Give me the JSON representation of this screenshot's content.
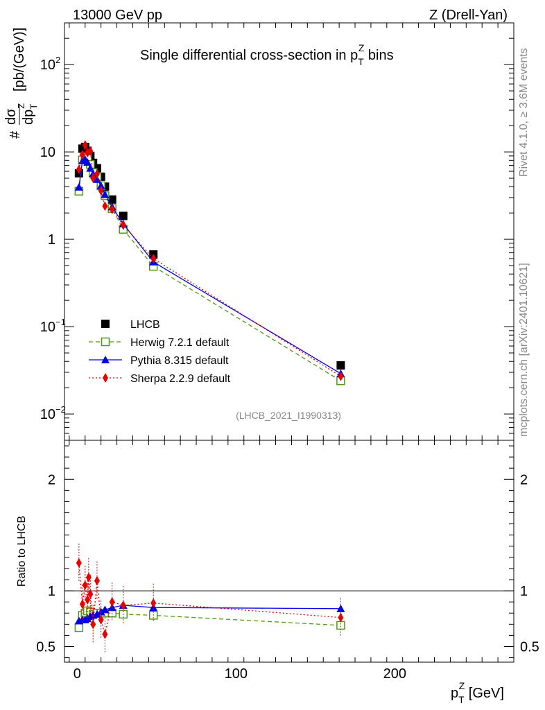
{
  "header": {
    "left": "13000 GeV pp",
    "right": "Z (Drell-Yan)"
  },
  "side_labels": {
    "rivet": "Rivet 4.1.0, ≥ 3.6M events",
    "mcplots": "mcplots.cern.ch [arXiv:2401.10621]"
  },
  "chart_data": {
    "type": "scatter",
    "title": "Single differential cross-section in p_T^Z bins",
    "xlabel": "p_T^Z [GeV]",
    "ylabel_top": "dσ/dp_T^Z [pb/(GeV)]",
    "ylabel_top_prefix": "#",
    "ylabel_bottom": "Ratio to LHCB",
    "analysis_tag": "(LHCB_2021_I1990313)",
    "xlim": [
      -8,
      275
    ],
    "ylim_top": [
      0.005,
      300
    ],
    "ylim_bottom": [
      0.36,
      2.35
    ],
    "yscale_top": "log",
    "x_ticks": [
      0,
      100,
      200
    ],
    "y_ticks_top": [
      {
        "v": 100,
        "mant": "10",
        "exp": "2"
      },
      {
        "v": 10,
        "mant": "10",
        "exp": ""
      },
      {
        "v": 1,
        "mant": "1",
        "exp": ""
      },
      {
        "v": 0.1,
        "mant": "10",
        "exp": "−1"
      },
      {
        "v": 0.01,
        "mant": "10",
        "exp": "−2"
      }
    ],
    "y_ticks_bottom": [
      {
        "v": 2,
        "label": "2"
      },
      {
        "v": 1,
        "label": "1"
      },
      {
        "v": 0.5,
        "label": "0.5"
      }
    ],
    "x": [
      1.1,
      3.3,
      5.0,
      6.5,
      8.3,
      10.0,
      12.5,
      15.0,
      17.5,
      22.0,
      29.0,
      48.0,
      166.0
    ],
    "series": [
      {
        "name": "LHCB",
        "color": "#000000",
        "marker": "square-filled",
        "values": [
          5.7,
          10.9,
          11.4,
          10.3,
          9.0,
          7.5,
          6.5,
          5.2,
          4.0,
          2.85,
          1.85,
          0.67,
          0.036
        ]
      },
      {
        "name": "Herwig 7.2.1 default",
        "color": "#4c9a11",
        "marker": "square-open",
        "line": "dashed",
        "values": [
          3.55,
          8.1,
          8.8,
          8.4,
          7.2,
          5.8,
          5.2,
          4.1,
          3.15,
          2.25,
          1.3,
          0.49,
          0.024
        ],
        "ratio": [
          0.67,
          0.78,
          0.8,
          0.82,
          0.81,
          0.79,
          0.8,
          0.8,
          0.8,
          0.8,
          0.79,
          0.78,
          0.69
        ]
      },
      {
        "name": "Pythia 8.315 default",
        "color": "#0000e6",
        "marker": "triangle",
        "line": "solid",
        "values": [
          3.95,
          7.9,
          8.2,
          7.6,
          6.5,
          5.6,
          4.85,
          4.1,
          3.25,
          2.35,
          1.5,
          0.55,
          0.029
        ],
        "ratio": [
          0.73,
          0.74,
          0.74,
          0.75,
          0.77,
          0.78,
          0.79,
          0.81,
          0.83,
          0.85,
          0.87,
          0.85,
          0.84
        ]
      },
      {
        "name": "Sherpa 2.2.9 default",
        "color": "#e60000",
        "marker": "diamond",
        "line": "dotted",
        "values": [
          6.3,
          9.3,
          12.0,
          9.8,
          10.2,
          5.0,
          5.6,
          3.6,
          2.4,
          2.2,
          1.45,
          0.6,
          0.027
        ],
        "ratio": [
          1.25,
          0.88,
          1.05,
          0.92,
          1.12,
          0.97,
          0.7,
          1.09,
          0.74,
          0.61,
          0.9,
          0.87,
          0.89,
          0.76
        ],
        "ratio_x": [
          1.1,
          3.3,
          5.0,
          6.5,
          7.2,
          8.3,
          10.0,
          12.5,
          15.0,
          17.5,
          22.0,
          29.0,
          48.0,
          166.0
        ]
      }
    ]
  }
}
